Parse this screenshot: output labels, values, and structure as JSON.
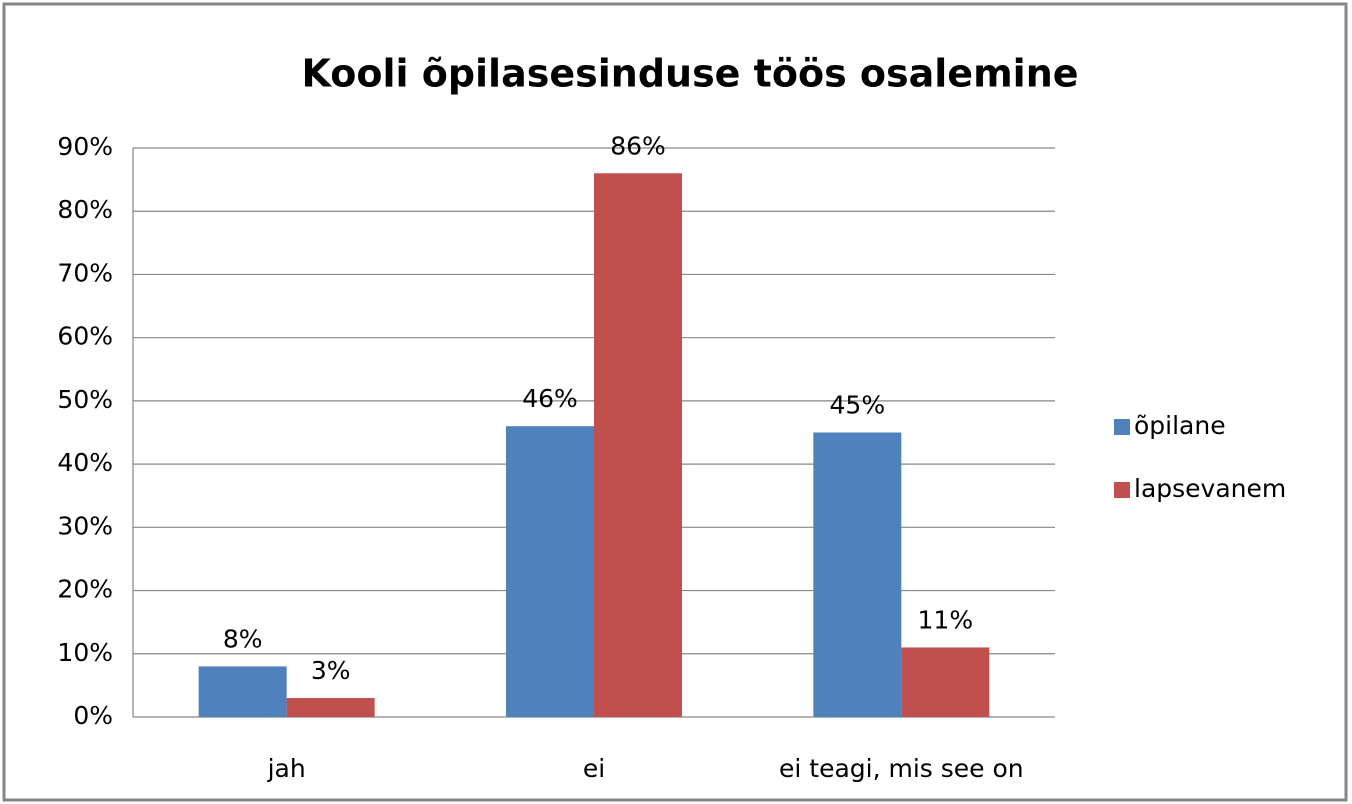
{
  "chart_data": {
    "type": "bar",
    "title": "Kooli õpilasesinduse töös osalemine",
    "categories": [
      "jah",
      "ei",
      "ei teagi, mis see on"
    ],
    "series": [
      {
        "name": "õpilane",
        "color": "#4f81bd",
        "values": [
          8,
          46,
          45
        ],
        "value_labels": [
          "8%",
          "46%",
          "45%"
        ]
      },
      {
        "name": "lapsevanem",
        "color": "#c0504d",
        "values": [
          3,
          86,
          11
        ],
        "value_labels": [
          "3%",
          "86%",
          "11%"
        ]
      }
    ],
    "ylim": [
      0,
      90
    ],
    "yticks": [
      {
        "value": 0,
        "label": "0%"
      },
      {
        "value": 10,
        "label": "10%"
      },
      {
        "value": 20,
        "label": "20%"
      },
      {
        "value": 30,
        "label": "30%"
      },
      {
        "value": 40,
        "label": "40%"
      },
      {
        "value": 50,
        "label": "50%"
      },
      {
        "value": 60,
        "label": "60%"
      },
      {
        "value": 70,
        "label": "70%"
      },
      {
        "value": 80,
        "label": "80%"
      },
      {
        "value": 90,
        "label": "90%"
      }
    ],
    "grid": true,
    "legend": "right"
  }
}
